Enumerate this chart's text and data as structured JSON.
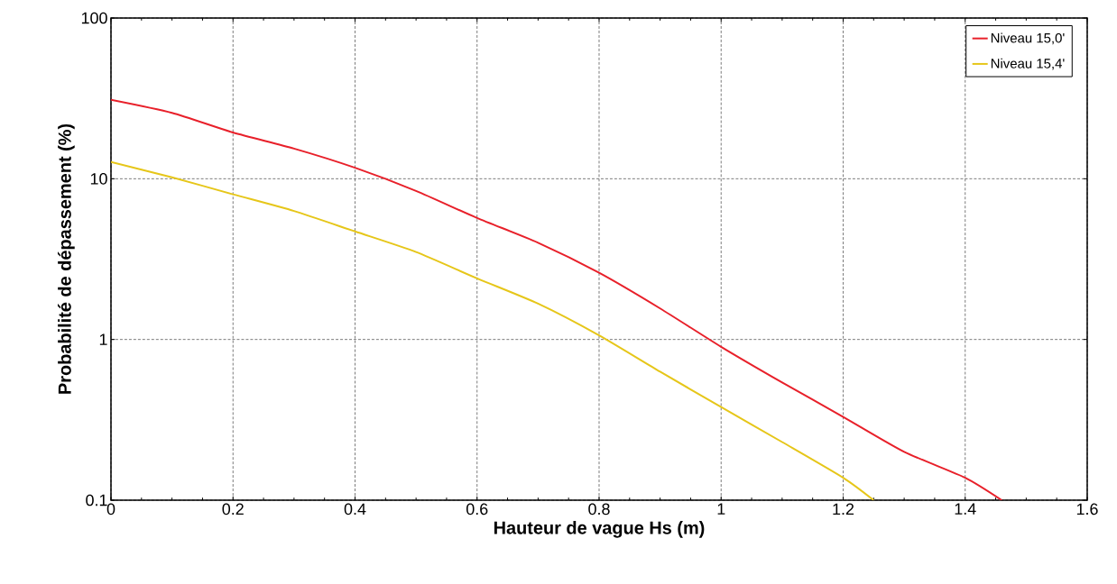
{
  "chart_data": {
    "type": "line",
    "xlabel": "Hauteur de vague Hs (m)",
    "ylabel": "Probabilité de dépassement (%)",
    "log": "y",
    "grid": true,
    "legend": "top right",
    "xlim": [
      0,
      1.6
    ],
    "ylim": [
      0.1,
      100
    ],
    "xticks": [
      0,
      0.2,
      0.4,
      0.6,
      0.8,
      1,
      1.2,
      1.4,
      1.6
    ],
    "yticks": [
      0.1,
      1,
      10,
      100
    ],
    "series": [
      {
        "name": "Niveau 15,0'",
        "color": "#e8202a",
        "x": [
          0,
          0.1,
          0.2,
          0.3,
          0.4,
          0.5,
          0.6,
          0.7,
          0.8,
          0.9,
          1.0,
          1.1,
          1.2,
          1.3,
          1.4,
          1.46
        ],
        "values": [
          31,
          25.7,
          19.4,
          15.4,
          11.7,
          8.4,
          5.7,
          4.0,
          2.6,
          1.56,
          0.9,
          0.54,
          0.33,
          0.2,
          0.138,
          0.1
        ]
      },
      {
        "name": "Niveau 15,4'",
        "color": "#e6c619",
        "x": [
          0,
          0.1,
          0.2,
          0.3,
          0.4,
          0.5,
          0.6,
          0.7,
          0.8,
          0.9,
          1.0,
          1.1,
          1.2,
          1.25
        ],
        "values": [
          12.7,
          10.2,
          8.0,
          6.3,
          4.7,
          3.5,
          2.4,
          1.67,
          1.06,
          0.63,
          0.38,
          0.23,
          0.138,
          0.1
        ]
      }
    ]
  }
}
